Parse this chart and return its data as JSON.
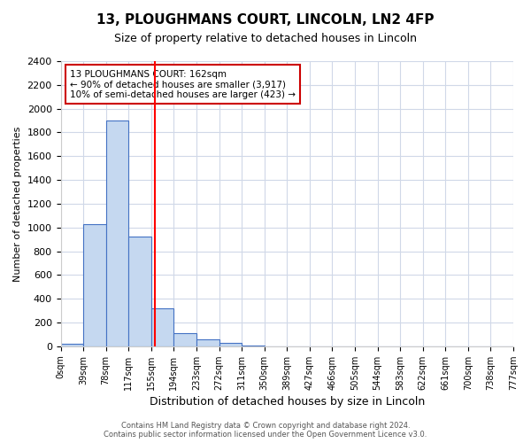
{
  "title": "13, PLOUGHMANS COURT, LINCOLN, LN2 4FP",
  "subtitle": "Size of property relative to detached houses in Lincoln",
  "xlabel": "Distribution of detached houses by size in Lincoln",
  "ylabel": "Number of detached properties",
  "bar_values": [
    20,
    1025,
    1900,
    920,
    320,
    110,
    55,
    25,
    5,
    0,
    0,
    0,
    0,
    0,
    0,
    0,
    0,
    0,
    0,
    0
  ],
  "bin_labels": [
    "0sqm",
    "39sqm",
    "78sqm",
    "117sqm",
    "155sqm",
    "194sqm",
    "233sqm",
    "272sqm",
    "311sqm",
    "350sqm",
    "389sqm",
    "427sqm",
    "466sqm",
    "505sqm",
    "544sqm",
    "583sqm",
    "622sqm",
    "661sqm",
    "700sqm",
    "738sqm",
    "777sqm"
  ],
  "bar_color": "#c5d8f0",
  "bar_edge_color": "#4472c4",
  "red_line_x": 4.15,
  "ylim": [
    0,
    2400
  ],
  "yticks": [
    0,
    200,
    400,
    600,
    800,
    1000,
    1200,
    1400,
    1600,
    1800,
    2000,
    2200,
    2400
  ],
  "annotation_title": "13 PLOUGHMANS COURT: 162sqm",
  "annotation_line1": "← 90% of detached houses are smaller (3,917)",
  "annotation_line2": "10% of semi-detached houses are larger (423) →",
  "annotation_box_color": "#ffffff",
  "annotation_box_edge_color": "#cc0000",
  "footer_line1": "Contains HM Land Registry data © Crown copyright and database right 2024.",
  "footer_line2": "Contains public sector information licensed under the Open Government Licence v3.0.",
  "background_color": "#ffffff",
  "grid_color": "#d0d8e8"
}
